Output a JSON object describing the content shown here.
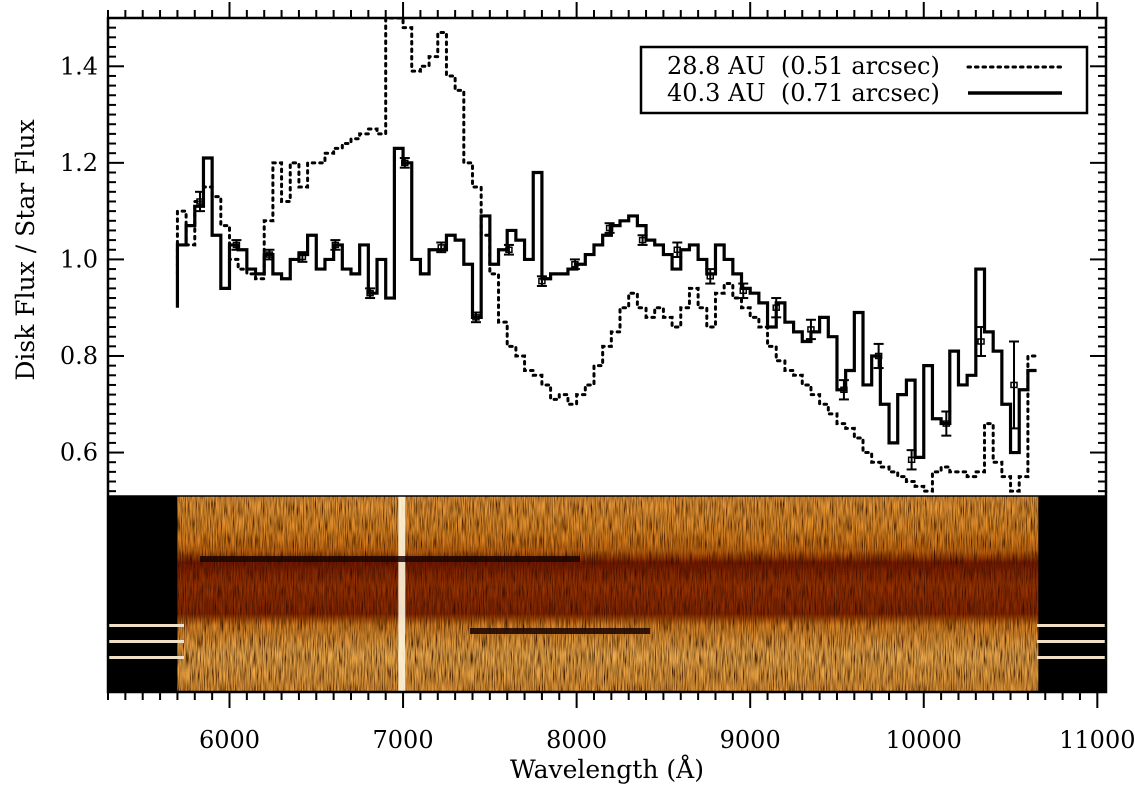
{
  "chart_data": {
    "type": "line",
    "xlabel": "Wavelength (Å)",
    "ylabel": "Disk Flux / Star Flux",
    "xlim": [
      5300,
      11050
    ],
    "ylim": [
      0.51,
      1.5
    ],
    "x_ticks": [
      6000,
      7000,
      8000,
      9000,
      10000,
      11000
    ],
    "y_ticks": [
      0.6,
      0.8,
      1.0,
      1.2,
      1.4
    ],
    "grid": false,
    "legend": {
      "placement": "top-right"
    },
    "series": [
      {
        "name": "28.8 AU  (0.51 arcsec)",
        "style": "dotted",
        "step": true,
        "x": [
          5700,
          5750,
          5800,
          5850,
          5900,
          5950,
          6000,
          6050,
          6100,
          6150,
          6200,
          6250,
          6300,
          6350,
          6400,
          6450,
          6500,
          6550,
          6600,
          6650,
          6700,
          6750,
          6800,
          6850,
          6900,
          6950,
          7000,
          7050,
          7100,
          7150,
          7200,
          7250,
          7300,
          7350,
          7400,
          7450,
          7500,
          7550,
          7600,
          7650,
          7700,
          7750,
          7800,
          7850,
          7900,
          7950,
          8000,
          8050,
          8100,
          8150,
          8200,
          8250,
          8300,
          8350,
          8400,
          8450,
          8500,
          8550,
          8600,
          8650,
          8700,
          8750,
          8800,
          8850,
          8900,
          8950,
          9000,
          9050,
          9100,
          9150,
          9200,
          9250,
          9300,
          9350,
          9400,
          9450,
          9500,
          9550,
          9600,
          9650,
          9700,
          9750,
          9800,
          9850,
          9900,
          9950,
          10000,
          10050,
          10100,
          10150,
          10200,
          10250,
          10300,
          10350,
          10400,
          10450,
          10500,
          10550,
          10600
        ],
        "y": [
          1.1,
          1.03,
          1.12,
          1.15,
          1.13,
          1.07,
          1.0,
          0.98,
          0.97,
          0.96,
          1.08,
          1.2,
          1.12,
          1.2,
          1.15,
          1.2,
          1.2,
          1.22,
          1.23,
          1.24,
          1.25,
          1.26,
          1.27,
          1.26,
          1.5,
          1.5,
          1.48,
          1.39,
          1.4,
          1.42,
          1.47,
          1.38,
          1.35,
          1.2,
          1.15,
          1.05,
          0.97,
          0.87,
          0.82,
          0.8,
          0.77,
          0.76,
          0.74,
          0.71,
          0.72,
          0.7,
          0.72,
          0.74,
          0.78,
          0.82,
          0.85,
          0.9,
          0.93,
          0.9,
          0.88,
          0.9,
          0.88,
          0.86,
          0.9,
          0.94,
          0.9,
          0.86,
          0.93,
          0.95,
          0.92,
          0.9,
          0.88,
          0.86,
          0.82,
          0.79,
          0.77,
          0.76,
          0.74,
          0.72,
          0.7,
          0.68,
          0.66,
          0.65,
          0.63,
          0.6,
          0.58,
          0.57,
          0.56,
          0.55,
          0.54,
          0.53,
          0.52,
          0.56,
          0.57,
          0.56,
          0.56,
          0.55,
          0.56,
          0.66,
          0.58,
          0.55,
          0.52,
          0.55,
          0.8
        ]
      },
      {
        "name": "40.3 AU  (0.71 arcsec)",
        "style": "solid",
        "step": true,
        "x": [
          5700,
          5750,
          5800,
          5850,
          5900,
          5950,
          6000,
          6050,
          6100,
          6150,
          6200,
          6250,
          6300,
          6350,
          6400,
          6450,
          6500,
          6550,
          6600,
          6650,
          6700,
          6750,
          6800,
          6850,
          6900,
          6950,
          7000,
          7050,
          7100,
          7150,
          7200,
          7250,
          7300,
          7350,
          7400,
          7450,
          7500,
          7550,
          7600,
          7650,
          7700,
          7750,
          7800,
          7850,
          7900,
          7950,
          8000,
          8050,
          8100,
          8150,
          8200,
          8250,
          8300,
          8350,
          8400,
          8450,
          8500,
          8550,
          8600,
          8650,
          8700,
          8750,
          8800,
          8850,
          8900,
          8950,
          9000,
          9050,
          9100,
          9150,
          9200,
          9250,
          9300,
          9350,
          9400,
          9450,
          9500,
          9550,
          9600,
          9650,
          9700,
          9750,
          9800,
          9850,
          9900,
          9950,
          10000,
          10050,
          10100,
          10150,
          10200,
          10250,
          10300,
          10350,
          10400,
          10450,
          10500,
          10550,
          10600
        ],
        "y": [
          1.03,
          1.07,
          1.11,
          1.21,
          1.05,
          0.94,
          1.03,
          1.02,
          0.98,
          0.97,
          1.01,
          0.97,
          0.96,
          1.0,
          1.01,
          1.05,
          0.98,
          1.0,
          1.03,
          0.98,
          0.97,
          1.03,
          0.93,
          1.0,
          0.92,
          1.23,
          1.2,
          1.0,
          0.97,
          1.02,
          1.02,
          1.05,
          1.04,
          0.99,
          0.88,
          1.09,
          0.99,
          1.02,
          1.06,
          1.04,
          1.0,
          1.18,
          0.96,
          0.97,
          0.97,
          0.98,
          0.99,
          1.01,
          1.03,
          1.05,
          1.07,
          1.08,
          1.09,
          1.07,
          1.04,
          1.03,
          1.01,
          0.98,
          1.02,
          1.03,
          1.0,
          0.97,
          1.03,
          1.0,
          0.97,
          0.94,
          0.93,
          0.91,
          0.86,
          0.91,
          0.87,
          0.85,
          0.83,
          0.85,
          0.88,
          0.84,
          0.73,
          0.77,
          0.89,
          0.74,
          0.8,
          0.7,
          0.62,
          0.72,
          0.75,
          0.59,
          0.78,
          0.67,
          0.66,
          0.81,
          0.74,
          0.76,
          0.98,
          0.85,
          0.81,
          0.7,
          0.6,
          0.73,
          0.77
        ]
      }
    ],
    "error_bars": {
      "series": "40.3 AU  (0.71 arcsec)",
      "points": [
        {
          "x": 5830,
          "y": 1.12,
          "err": 0.02
        },
        {
          "x": 6040,
          "y": 1.03,
          "err": 0.01
        },
        {
          "x": 6230,
          "y": 1.01,
          "err": 0.01
        },
        {
          "x": 6420,
          "y": 1.005,
          "err": 0.01
        },
        {
          "x": 6610,
          "y": 1.03,
          "err": 0.01
        },
        {
          "x": 6810,
          "y": 0.93,
          "err": 0.01
        },
        {
          "x": 7010,
          "y": 1.2,
          "err": 0.01
        },
        {
          "x": 7220,
          "y": 1.025,
          "err": 0.01
        },
        {
          "x": 7420,
          "y": 0.88,
          "err": 0.01
        },
        {
          "x": 7610,
          "y": 1.02,
          "err": 0.01
        },
        {
          "x": 7800,
          "y": 0.955,
          "err": 0.01
        },
        {
          "x": 7990,
          "y": 0.99,
          "err": 0.01
        },
        {
          "x": 8190,
          "y": 1.065,
          "err": 0.01
        },
        {
          "x": 8380,
          "y": 1.04,
          "err": 0.01
        },
        {
          "x": 8580,
          "y": 1.02,
          "err": 0.015
        },
        {
          "x": 8770,
          "y": 0.965,
          "err": 0.015
        },
        {
          "x": 8960,
          "y": 0.935,
          "err": 0.015
        },
        {
          "x": 9150,
          "y": 0.9,
          "err": 0.02
        },
        {
          "x": 9350,
          "y": 0.855,
          "err": 0.02
        },
        {
          "x": 9540,
          "y": 0.73,
          "err": 0.02
        },
        {
          "x": 9740,
          "y": 0.8,
          "err": 0.025
        },
        {
          "x": 9930,
          "y": 0.585,
          "err": 0.02
        },
        {
          "x": 10130,
          "y": 0.66,
          "err": 0.025
        },
        {
          "x": 10330,
          "y": 0.83,
          "err": 0.03
        },
        {
          "x": 10520,
          "y": 0.74,
          "err": 0.09
        }
      ]
    },
    "spectrum_image": {
      "colormap": "orange-black",
      "x_range": [
        5700,
        10660
      ]
    }
  }
}
